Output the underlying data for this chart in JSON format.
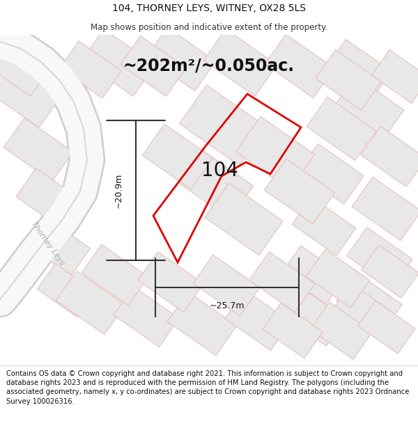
{
  "title": "104, THORNEY LEYS, WITNEY, OX28 5LS",
  "subtitle": "Map shows position and indicative extent of the property.",
  "area_label": "~202m²/~0.050ac.",
  "width_label": "~25.7m",
  "height_label": "~20.9m",
  "plot_number": "104",
  "footer": "Contains OS data © Crown copyright and database right 2021. This information is subject to Crown copyright and database rights 2023 and is reproduced with the permission of HM Land Registry. The polygons (including the associated geometry, namely x, y co-ordinates) are subject to Crown copyright and database rights 2023 Ordnance Survey 100026316.",
  "bg_color": "#ffffff",
  "map_bg": "#ffffff",
  "plot_color": "#dd0000",
  "building_fill": "#e8e8e8",
  "building_outline": "#e8b8b8",
  "road_outline": "#c8c8c8",
  "road_fill": "#ffffff",
  "title_fontsize": 10,
  "subtitle_fontsize": 8.5,
  "area_label_fontsize": 17,
  "plot_label_fontsize": 20,
  "footer_fontsize": 7.2,
  "dim_fontsize": 9
}
